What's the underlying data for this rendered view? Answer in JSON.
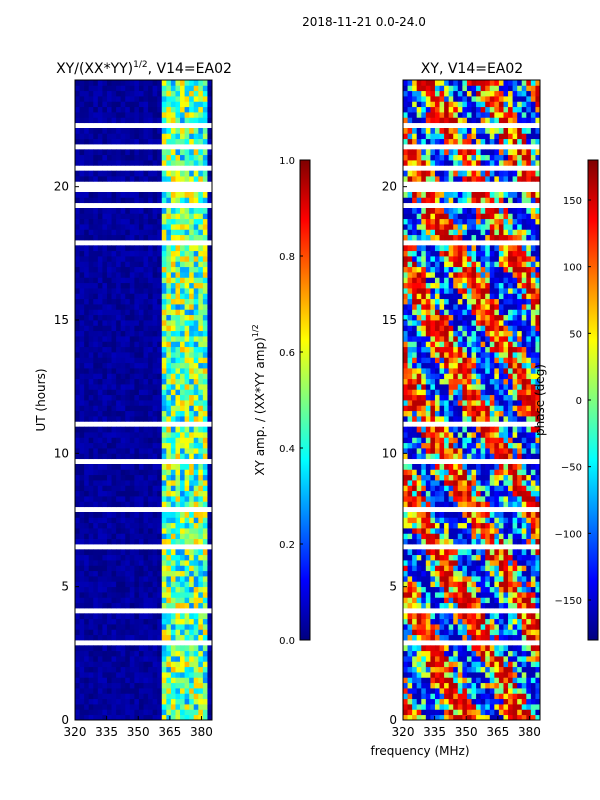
{
  "figure_title": "2018-11-21 0.0-24.0",
  "xlabel_shared": "frequency (MHz)",
  "colors": {
    "jet": [
      "#00007f",
      "#0000ff",
      "#007fff",
      "#00ffff",
      "#7fff7f",
      "#ffff00",
      "#ff7f00",
      "#ff0000",
      "#7f0000"
    ],
    "gap": "#ffffff"
  },
  "chart_data": [
    {
      "type": "heatmap",
      "title_main": "XY/(XX*YY)",
      "title_sup": "1/2",
      "title_tail": ", V14=EA02",
      "xlabel": "",
      "ylabel": "UT (hours)",
      "xlim": [
        320,
        385
      ],
      "ylim": [
        0,
        24
      ],
      "xticks": [
        "320",
        "335",
        "350",
        "365",
        "380"
      ],
      "xtick_values": [
        320,
        335,
        350,
        365,
        380
      ],
      "yticks": [
        "0",
        "5",
        "10",
        "15",
        "20"
      ],
      "ytick_values": [
        0,
        5,
        10,
        15,
        20
      ],
      "description_values": "Amplitude ratio mostly ~0.0 below 362 MHz; bands near 362-382 MHz reach ~0.3-0.6"
    },
    {
      "type": "heatmap",
      "title_main": "XY, V14=EA02",
      "xlabel": "frequency (MHz)",
      "ylabel": "",
      "xlim": [
        320,
        385
      ],
      "ylim": [
        0,
        24
      ],
      "xticks": [
        "320",
        "335",
        "350",
        "365",
        "380"
      ],
      "xtick_values": [
        320,
        335,
        350,
        365,
        380
      ],
      "yticks": [
        "0",
        "5",
        "10",
        "15",
        "20"
      ],
      "ytick_values": [
        0,
        5,
        10,
        15,
        20
      ],
      "description_values": "Phase values span -180 to 180 degrees across all frequencies"
    }
  ],
  "colorbars": [
    {
      "label": "XY amp. / (XX*YY amp)",
      "label_sup": "1/2",
      "range": [
        0.0,
        1.0
      ],
      "ticks": [
        "0.0",
        "0.2",
        "0.4",
        "0.6",
        "0.8",
        "1.0"
      ],
      "tick_values": [
        0.0,
        0.2,
        0.4,
        0.6,
        0.8,
        1.0
      ]
    },
    {
      "label": "phase (deg)",
      "range": [
        -180,
        180
      ],
      "ticks": [
        "−150",
        "−100",
        "−50",
        "0",
        "50",
        "100",
        "150"
      ],
      "tick_values": [
        -150,
        -100,
        -50,
        0,
        50,
        100,
        150
      ]
    }
  ]
}
